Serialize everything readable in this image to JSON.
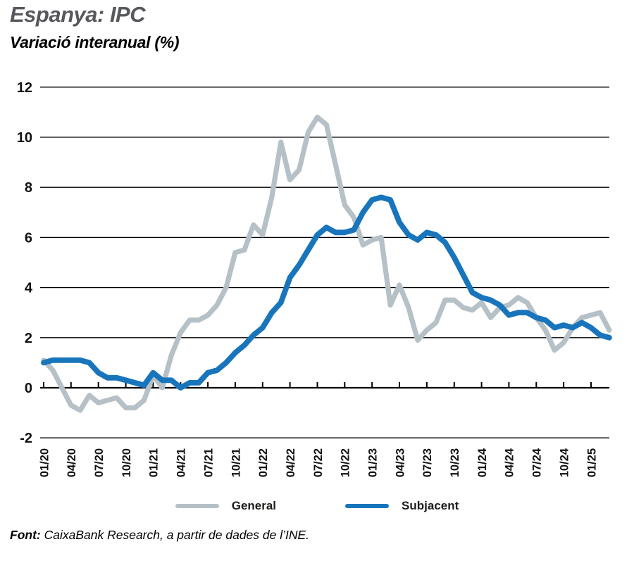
{
  "header": {
    "title": "Espanya: IPC",
    "subtitle": "Variació interanual (%)"
  },
  "footer": {
    "source_label": "Font:",
    "source_text": " CaixaBank Research, a partir de dades de l’INE."
  },
  "chart_data": {
    "type": "line",
    "title": "Espanya: IPC",
    "subtitle": "Variació interanual (%)",
    "xlabel": "",
    "ylabel": "Variació interanual (%)",
    "ylim": [
      -2,
      12
    ],
    "yticks": [
      12,
      10,
      8,
      6,
      4,
      2,
      0,
      -2
    ],
    "x_tick_every": 3,
    "grid": "horizontal-black-lines",
    "legend_position": "bottom",
    "axis_color": "#000000",
    "label_color": "#111111",
    "categories": [
      "01/20",
      "02/20",
      "03/20",
      "04/20",
      "05/20",
      "06/20",
      "07/20",
      "08/20",
      "09/20",
      "10/20",
      "11/20",
      "12/20",
      "01/21",
      "02/21",
      "03/21",
      "04/21",
      "05/21",
      "06/21",
      "07/21",
      "08/21",
      "09/21",
      "10/21",
      "11/21",
      "12/21",
      "01/22",
      "02/22",
      "03/22",
      "04/22",
      "05/22",
      "06/22",
      "07/22",
      "08/22",
      "09/22",
      "10/22",
      "11/22",
      "12/22",
      "01/23",
      "02/23",
      "03/23",
      "04/23",
      "05/23",
      "06/23",
      "07/23",
      "08/23",
      "09/23",
      "10/23",
      "11/23",
      "12/23",
      "01/24",
      "02/24",
      "03/24",
      "04/24",
      "05/24",
      "06/24",
      "07/24",
      "08/24",
      "09/24",
      "10/24",
      "11/24",
      "12/24",
      "01/25",
      "02/25",
      "03/25"
    ],
    "x_tick_labels_shown": [
      "01/20",
      "04/20",
      "07/20",
      "10/20",
      "01/21",
      "04/21",
      "07/21",
      "10/21",
      "01/22",
      "04/22",
      "07/22",
      "10/22",
      "01/23",
      "04/23",
      "07/23",
      "10/23",
      "01/24",
      "04/24",
      "07/24",
      "10/24",
      "01/25"
    ],
    "series": [
      {
        "name": "General",
        "color": "#b6c0c7",
        "values": [
          1.1,
          0.7,
          0.0,
          -0.7,
          -0.9,
          -0.3,
          -0.6,
          -0.5,
          -0.4,
          -0.8,
          -0.8,
          -0.5,
          0.5,
          0.0,
          1.3,
          2.2,
          2.7,
          2.7,
          2.9,
          3.3,
          4.0,
          5.4,
          5.5,
          6.5,
          6.1,
          7.6,
          9.8,
          8.3,
          8.7,
          10.2,
          10.8,
          10.5,
          8.9,
          7.3,
          6.8,
          5.7,
          5.9,
          6.0,
          3.3,
          4.1,
          3.2,
          1.9,
          2.3,
          2.6,
          3.5,
          3.5,
          3.2,
          3.1,
          3.4,
          2.8,
          3.2,
          3.3,
          3.6,
          3.4,
          2.8,
          2.3,
          1.5,
          1.8,
          2.4,
          2.8,
          2.9,
          3.0,
          2.3
        ]
      },
      {
        "name": "Subjacent",
        "color": "#1875bc",
        "values": [
          1.0,
          1.1,
          1.1,
          1.1,
          1.1,
          1.0,
          0.6,
          0.4,
          0.4,
          0.3,
          0.2,
          0.1,
          0.6,
          0.3,
          0.3,
          0.0,
          0.2,
          0.2,
          0.6,
          0.7,
          1.0,
          1.4,
          1.7,
          2.1,
          2.4,
          3.0,
          3.4,
          4.4,
          4.9,
          5.5,
          6.1,
          6.4,
          6.2,
          6.2,
          6.3,
          7.0,
          7.5,
          7.6,
          7.5,
          6.6,
          6.1,
          5.9,
          6.2,
          6.1,
          5.8,
          5.2,
          4.5,
          3.8,
          3.6,
          3.5,
          3.3,
          2.9,
          3.0,
          3.0,
          2.8,
          2.7,
          2.4,
          2.5,
          2.4,
          2.6,
          2.4,
          2.1,
          2.0
        ]
      }
    ]
  }
}
